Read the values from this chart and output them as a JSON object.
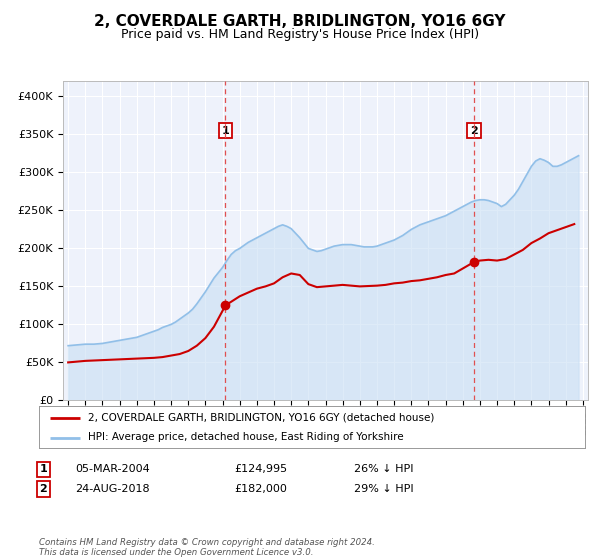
{
  "title": "2, COVERDALE GARTH, BRIDLINGTON, YO16 6GY",
  "subtitle": "Price paid vs. HM Land Registry's House Price Index (HPI)",
  "title_fontsize": 11,
  "subtitle_fontsize": 9,
  "ylim": [
    0,
    420000
  ],
  "yticks": [
    0,
    50000,
    100000,
    150000,
    200000,
    250000,
    300000,
    350000,
    400000
  ],
  "ytick_labels": [
    "£0",
    "£50K",
    "£100K",
    "£150K",
    "£200K",
    "£250K",
    "£300K",
    "£350K",
    "£400K"
  ],
  "background_color": "#ffffff",
  "plot_bg_color": "#eef2fb",
  "grid_color": "#ffffff",
  "hpi_color": "#91bfe8",
  "hpi_fill_color": "#c8dff4",
  "price_color": "#cc0000",
  "marker_color": "#cc0000",
  "dashed_line_color": "#e05050",
  "marker1_x": 2004.17,
  "marker1_y": 124995,
  "marker2_x": 2018.65,
  "marker2_y": 182000,
  "legend_label_price": "2, COVERDALE GARTH, BRIDLINGTON, YO16 6GY (detached house)",
  "legend_label_hpi": "HPI: Average price, detached house, East Riding of Yorkshire",
  "table_row1": [
    "1",
    "05-MAR-2004",
    "£124,995",
    "26% ↓ HPI"
  ],
  "table_row2": [
    "2",
    "24-AUG-2018",
    "£182,000",
    "29% ↓ HPI"
  ],
  "footer": "Contains HM Land Registry data © Crown copyright and database right 2024.\nThis data is licensed under the Open Government Licence v3.0.",
  "hpi_years": [
    1995.0,
    1995.25,
    1995.5,
    1995.75,
    1996.0,
    1996.25,
    1996.5,
    1996.75,
    1997.0,
    1997.25,
    1997.5,
    1997.75,
    1998.0,
    1998.25,
    1998.5,
    1998.75,
    1999.0,
    1999.25,
    1999.5,
    1999.75,
    2000.0,
    2000.25,
    2000.5,
    2000.75,
    2001.0,
    2001.25,
    2001.5,
    2001.75,
    2002.0,
    2002.25,
    2002.5,
    2002.75,
    2003.0,
    2003.25,
    2003.5,
    2003.75,
    2004.0,
    2004.25,
    2004.5,
    2004.75,
    2005.0,
    2005.25,
    2005.5,
    2005.75,
    2006.0,
    2006.25,
    2006.5,
    2006.75,
    2007.0,
    2007.25,
    2007.5,
    2007.75,
    2008.0,
    2008.25,
    2008.5,
    2008.75,
    2009.0,
    2009.25,
    2009.5,
    2009.75,
    2010.0,
    2010.25,
    2010.5,
    2010.75,
    2011.0,
    2011.25,
    2011.5,
    2011.75,
    2012.0,
    2012.25,
    2012.5,
    2012.75,
    2013.0,
    2013.25,
    2013.5,
    2013.75,
    2014.0,
    2014.25,
    2014.5,
    2014.75,
    2015.0,
    2015.25,
    2015.5,
    2015.75,
    2016.0,
    2016.25,
    2016.5,
    2016.75,
    2017.0,
    2017.25,
    2017.5,
    2017.75,
    2018.0,
    2018.25,
    2018.5,
    2018.75,
    2019.0,
    2019.25,
    2019.5,
    2019.75,
    2020.0,
    2020.25,
    2020.5,
    2020.75,
    2021.0,
    2021.25,
    2021.5,
    2021.75,
    2022.0,
    2022.25,
    2022.5,
    2022.75,
    2023.0,
    2023.25,
    2023.5,
    2023.75,
    2024.0,
    2024.25,
    2024.5,
    2024.75
  ],
  "hpi_values": [
    72000,
    72500,
    73000,
    73500,
    74000,
    74000,
    74000,
    74500,
    75000,
    76000,
    77000,
    78000,
    79000,
    80000,
    81000,
    82000,
    83000,
    85000,
    87000,
    89000,
    91000,
    93000,
    96000,
    98000,
    100000,
    103000,
    107000,
    111000,
    115000,
    120000,
    127000,
    135000,
    143000,
    152000,
    161000,
    168000,
    175000,
    184000,
    192000,
    197000,
    200000,
    204000,
    208000,
    211000,
    214000,
    217000,
    220000,
    223000,
    226000,
    229000,
    231000,
    229000,
    226000,
    220000,
    214000,
    207000,
    200000,
    198000,
    196000,
    197000,
    199000,
    201000,
    203000,
    204000,
    205000,
    205000,
    205000,
    204000,
    203000,
    202000,
    202000,
    202000,
    203000,
    205000,
    207000,
    209000,
    211000,
    214000,
    217000,
    221000,
    225000,
    228000,
    231000,
    233000,
    235000,
    237000,
    239000,
    241000,
    243000,
    246000,
    249000,
    252000,
    255000,
    258000,
    261000,
    263000,
    264000,
    264000,
    263000,
    261000,
    259000,
    255000,
    258000,
    264000,
    270000,
    278000,
    288000,
    298000,
    308000,
    315000,
    318000,
    316000,
    313000,
    308000,
    308000,
    310000,
    313000,
    316000,
    319000,
    322000
  ],
  "price_years": [
    1995.0,
    1995.5,
    1996.0,
    1996.5,
    1997.0,
    1997.5,
    1998.0,
    1998.5,
    1999.0,
    1999.5,
    2000.0,
    2000.5,
    2001.0,
    2001.5,
    2002.0,
    2002.5,
    2003.0,
    2003.5,
    2004.17,
    2005.0,
    2005.5,
    2006.0,
    2006.5,
    2007.0,
    2007.5,
    2008.0,
    2008.5,
    2009.0,
    2009.5,
    2010.0,
    2010.5,
    2011.0,
    2011.5,
    2012.0,
    2012.5,
    2013.0,
    2013.5,
    2014.0,
    2014.5,
    2015.0,
    2015.5,
    2016.0,
    2016.5,
    2017.0,
    2017.5,
    2018.65,
    2019.0,
    2019.5,
    2020.0,
    2020.5,
    2021.0,
    2021.5,
    2022.0,
    2022.5,
    2023.0,
    2023.5,
    2024.0,
    2024.5
  ],
  "price_values": [
    50000,
    51000,
    52000,
    52500,
    53000,
    53500,
    54000,
    54500,
    55000,
    55500,
    56000,
    57000,
    59000,
    61000,
    65000,
    72000,
    82000,
    97000,
    124995,
    137000,
    142000,
    147000,
    150000,
    154000,
    162000,
    167000,
    165000,
    153000,
    149000,
    150000,
    151000,
    152000,
    151000,
    150000,
    150500,
    151000,
    152000,
    154000,
    155000,
    157000,
    158000,
    160000,
    162000,
    165000,
    167000,
    182000,
    184000,
    185000,
    184000,
    186000,
    192000,
    198000,
    207000,
    213000,
    220000,
    224000,
    228000,
    232000
  ],
  "xlim": [
    1994.7,
    2025.3
  ],
  "xticks": [
    1995,
    1996,
    1997,
    1998,
    1999,
    2000,
    2001,
    2002,
    2003,
    2004,
    2005,
    2006,
    2007,
    2008,
    2009,
    2010,
    2011,
    2012,
    2013,
    2014,
    2015,
    2016,
    2017,
    2018,
    2019,
    2020,
    2021,
    2022,
    2023,
    2024,
    2025
  ]
}
